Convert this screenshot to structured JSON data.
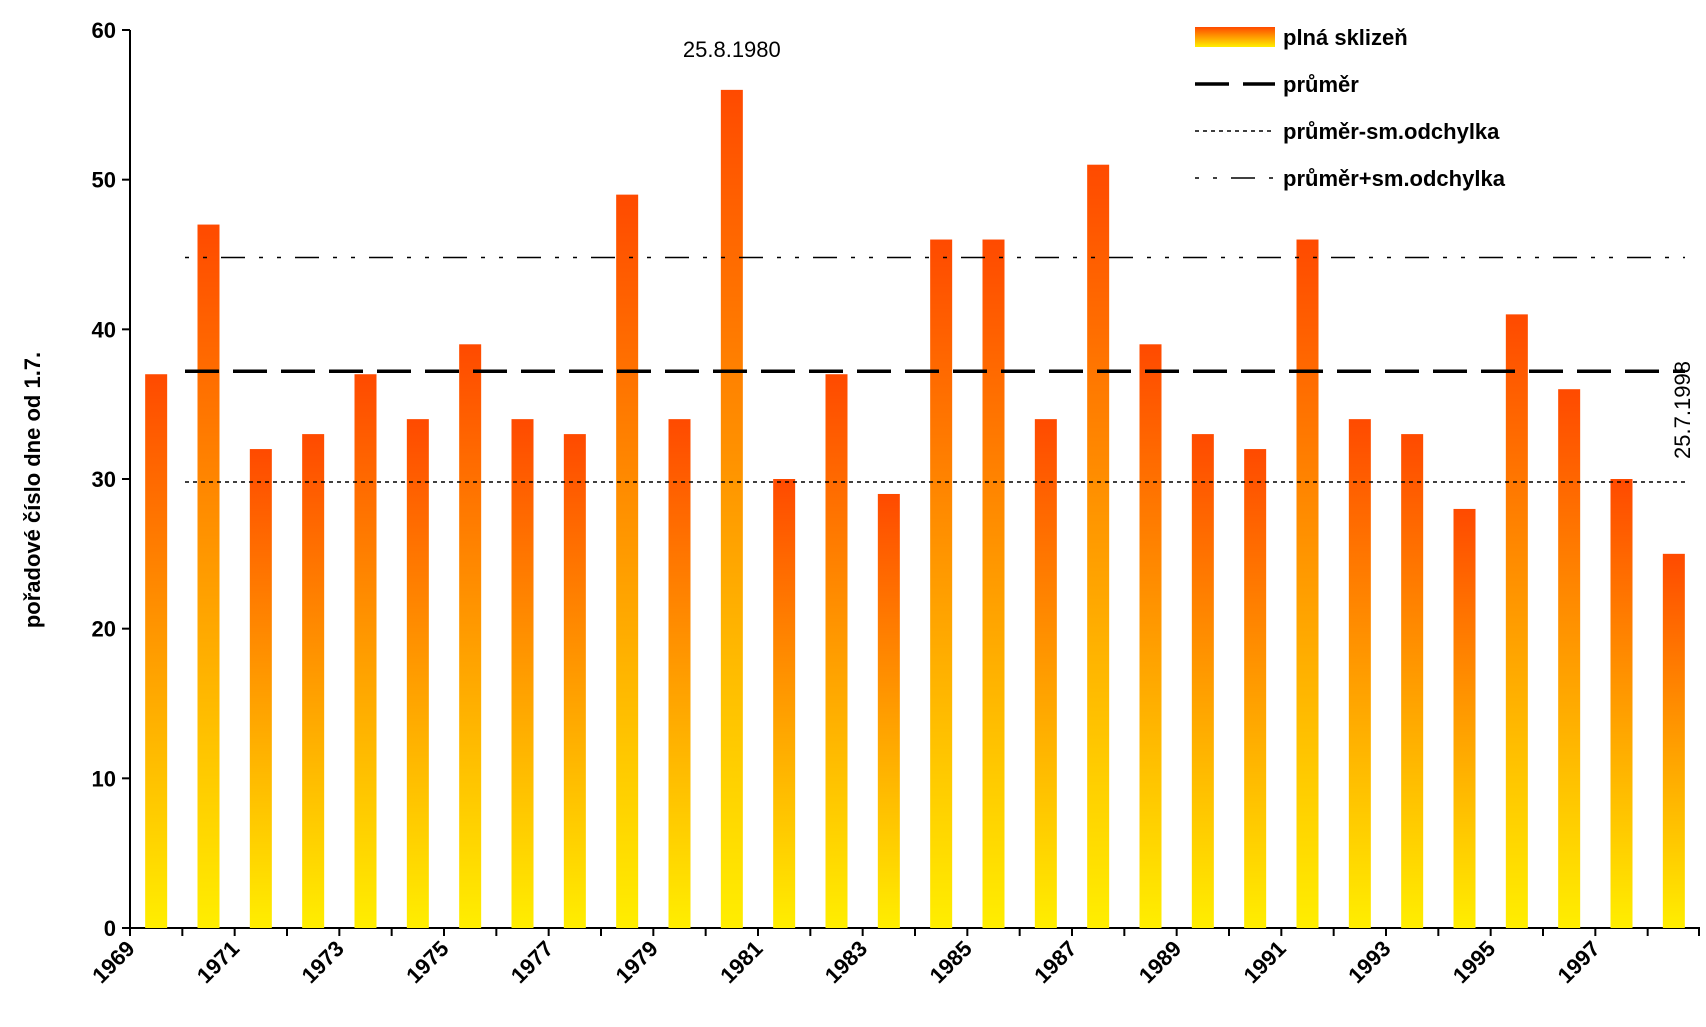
{
  "chart_data": {
    "type": "bar",
    "y_label": "pořadové číslo dne od 1.7.",
    "categories": [
      "1969",
      null,
      "1971",
      null,
      "1973",
      null,
      "1975",
      null,
      "1977",
      null,
      "1979",
      null,
      "1981",
      null,
      "1983",
      null,
      "1985",
      null,
      "1987",
      null,
      "1989",
      null,
      "1991",
      null,
      "1993",
      null,
      "1995",
      null,
      "1997",
      null
    ],
    "series": [
      {
        "name": "plná sklizeň",
        "color": "#ff4a00",
        "values": [
          37,
          47,
          32,
          33,
          37,
          34,
          39,
          34,
          33,
          49,
          34,
          56,
          30,
          37,
          29,
          46,
          46,
          34,
          51,
          39,
          33,
          32,
          46,
          34,
          33,
          28,
          41,
          36,
          30,
          25
        ]
      }
    ],
    "reference_lines": [
      {
        "name": "průměr",
        "value": 37.2,
        "style": "long-dash"
      },
      {
        "name": "průměr-sm.odchylka",
        "value": 29.8,
        "style": "dot"
      },
      {
        "name": "průměr+sm.odchylka",
        "value": 44.8,
        "style": "dash-dot"
      }
    ],
    "annotations": [
      {
        "text": "25.8.1980",
        "category_index": 11
      },
      {
        "text": "25.7.1998",
        "category_index": 29
      }
    ],
    "ylim": [
      0,
      60
    ],
    "yticks": [
      0,
      10,
      20,
      30,
      40,
      50,
      60
    ]
  }
}
